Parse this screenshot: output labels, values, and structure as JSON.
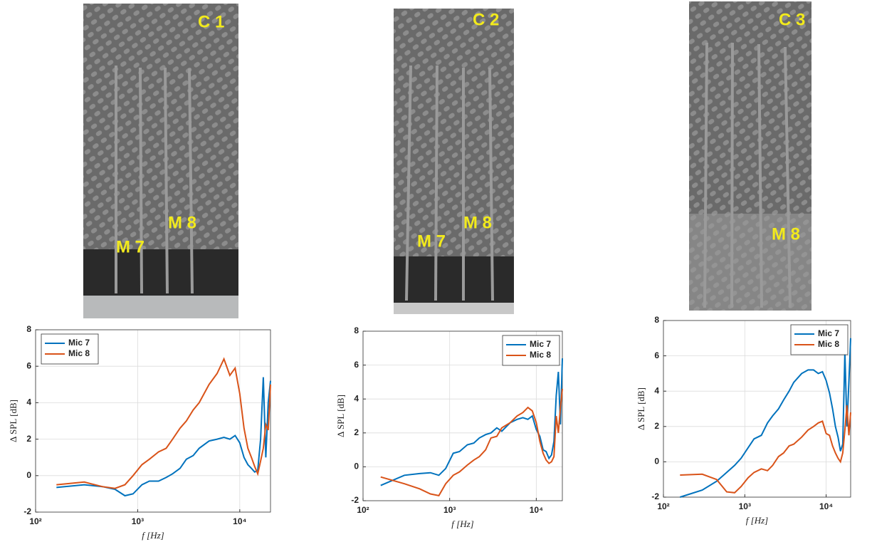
{
  "photos": [
    {
      "labels": [
        "C 1",
        "M 7",
        "M 8"
      ]
    },
    {
      "labels": [
        "C 2",
        "M 7",
        "M 8"
      ]
    },
    {
      "labels": [
        "C 3",
        "M 8"
      ]
    }
  ],
  "chart_data": [
    {
      "type": "line",
      "xlabel": "f [Hz]",
      "ylabel": "Δ SPL [dB]",
      "xscale": "log",
      "grid": true,
      "legend": "upper left",
      "xlim": [
        100,
        20000
      ],
      "xticks": [
        {
          "value": 100,
          "label": "10²"
        },
        {
          "value": 1000,
          "label": "10³"
        },
        {
          "value": 10000,
          "label": "10⁴"
        }
      ],
      "ylim": [
        -2,
        8
      ],
      "yticks": [
        -2,
        0,
        2,
        4,
        6,
        8
      ],
      "x": [
        160,
        300,
        450,
        600,
        750,
        900,
        1100,
        1300,
        1600,
        1900,
        2200,
        2600,
        3000,
        3500,
        4000,
        5000,
        6000,
        7000,
        8000,
        9000,
        10000,
        11000,
        12000,
        13000,
        14000,
        15000,
        16000,
        17000,
        18000,
        19000,
        20000
      ],
      "series": [
        {
          "name": "Mic 7",
          "color": "#0072bd",
          "values": [
            -0.65,
            -0.5,
            -0.6,
            -0.75,
            -1.1,
            -1.0,
            -0.5,
            -0.3,
            -0.3,
            -0.1,
            0.1,
            0.4,
            0.9,
            1.1,
            1.5,
            1.9,
            2.0,
            2.1,
            2.0,
            2.2,
            1.8,
            1.0,
            0.6,
            0.4,
            0.2,
            0.3,
            2.0,
            5.4,
            1.0,
            4.0,
            5.2
          ]
        },
        {
          "name": "Mic 8",
          "color": "#d95319",
          "values": [
            -0.5,
            -0.35,
            -0.6,
            -0.7,
            -0.5,
            0.0,
            0.6,
            0.9,
            1.3,
            1.5,
            2.0,
            2.6,
            3.0,
            3.6,
            4.0,
            5.0,
            5.6,
            6.4,
            5.5,
            5.9,
            4.5,
            2.6,
            1.5,
            1.0,
            0.5,
            0.1,
            0.8,
            1.5,
            2.8,
            2.5,
            5.0
          ]
        }
      ]
    },
    {
      "type": "line",
      "xlabel": "f [Hz]",
      "ylabel": "Δ SPL [dB]",
      "xscale": "log",
      "grid": true,
      "legend": "upper right",
      "xlim": [
        100,
        20000
      ],
      "xticks": [
        {
          "value": 100,
          "label": "10²"
        },
        {
          "value": 1000,
          "label": "10³"
        },
        {
          "value": 10000,
          "label": "10⁴"
        }
      ],
      "ylim": [
        -2,
        8
      ],
      "yticks": [
        -2,
        0,
        2,
        4,
        6,
        8
      ],
      "x": [
        160,
        300,
        450,
        600,
        750,
        900,
        1100,
        1300,
        1600,
        1900,
        2200,
        2600,
        3000,
        3500,
        4000,
        5000,
        6000,
        7000,
        8000,
        9000,
        10000,
        11000,
        12000,
        13000,
        14000,
        15000,
        16000,
        17000,
        18000,
        19000,
        20000
      ],
      "series": [
        {
          "name": "Mic 7",
          "color": "#0072bd",
          "values": [
            -1.1,
            -0.5,
            -0.4,
            -0.35,
            -0.5,
            -0.1,
            0.8,
            0.9,
            1.3,
            1.4,
            1.7,
            1.9,
            2.0,
            2.3,
            2.1,
            2.6,
            2.8,
            2.9,
            2.8,
            3.0,
            2.2,
            1.8,
            1.0,
            0.9,
            0.5,
            0.7,
            1.5,
            4.2,
            5.6,
            2.5,
            6.4
          ]
        },
        {
          "name": "Mic 8",
          "color": "#d95319",
          "values": [
            -0.6,
            -1.0,
            -1.3,
            -1.6,
            -1.7,
            -1.0,
            -0.5,
            -0.3,
            0.1,
            0.4,
            0.6,
            1.0,
            1.7,
            1.8,
            2.3,
            2.6,
            3.0,
            3.2,
            3.5,
            3.3,
            2.6,
            1.5,
            0.8,
            0.4,
            0.2,
            0.3,
            0.6,
            3.0,
            2.0,
            3.5,
            4.6
          ]
        }
      ]
    },
    {
      "type": "line",
      "xlabel": "f [Hz]",
      "ylabel": "Δ SPL [dB]",
      "xscale": "log",
      "grid": true,
      "legend": "upper right",
      "xlim": [
        100,
        20000
      ],
      "xticks": [
        {
          "value": 100,
          "label": "10²"
        },
        {
          "value": 1000,
          "label": "10³"
        },
        {
          "value": 10000,
          "label": "10⁴"
        }
      ],
      "ylim": [
        -2,
        8
      ],
      "yticks": [
        -2,
        0,
        2,
        4,
        6,
        8
      ],
      "x": [
        160,
        300,
        450,
        600,
        750,
        900,
        1100,
        1300,
        1600,
        1900,
        2200,
        2600,
        3000,
        3500,
        4000,
        5000,
        6000,
        7000,
        8000,
        9000,
        10000,
        11000,
        12000,
        13000,
        14000,
        15000,
        16000,
        17000,
        18000,
        19000,
        20000
      ],
      "series": [
        {
          "name": "Mic 7",
          "color": "#0072bd",
          "values": [
            -2.0,
            -1.6,
            -1.1,
            -0.6,
            -0.2,
            0.2,
            0.8,
            1.3,
            1.5,
            2.2,
            2.6,
            3.0,
            3.5,
            4.0,
            4.5,
            5.0,
            5.2,
            5.2,
            5.0,
            5.1,
            4.6,
            3.9,
            3.0,
            2.0,
            1.4,
            0.6,
            1.0,
            6.2,
            2.0,
            4.5,
            7.0
          ]
        },
        {
          "name": "Mic 8",
          "color": "#d95319",
          "values": [
            -0.75,
            -0.7,
            -1.0,
            -1.7,
            -1.75,
            -1.4,
            -0.9,
            -0.6,
            -0.4,
            -0.5,
            -0.2,
            0.3,
            0.5,
            0.9,
            1.0,
            1.4,
            1.8,
            2.0,
            2.2,
            2.3,
            1.6,
            1.5,
            0.9,
            0.5,
            0.2,
            0.0,
            0.5,
            1.8,
            3.2,
            1.5,
            2.8
          ]
        }
      ]
    }
  ]
}
